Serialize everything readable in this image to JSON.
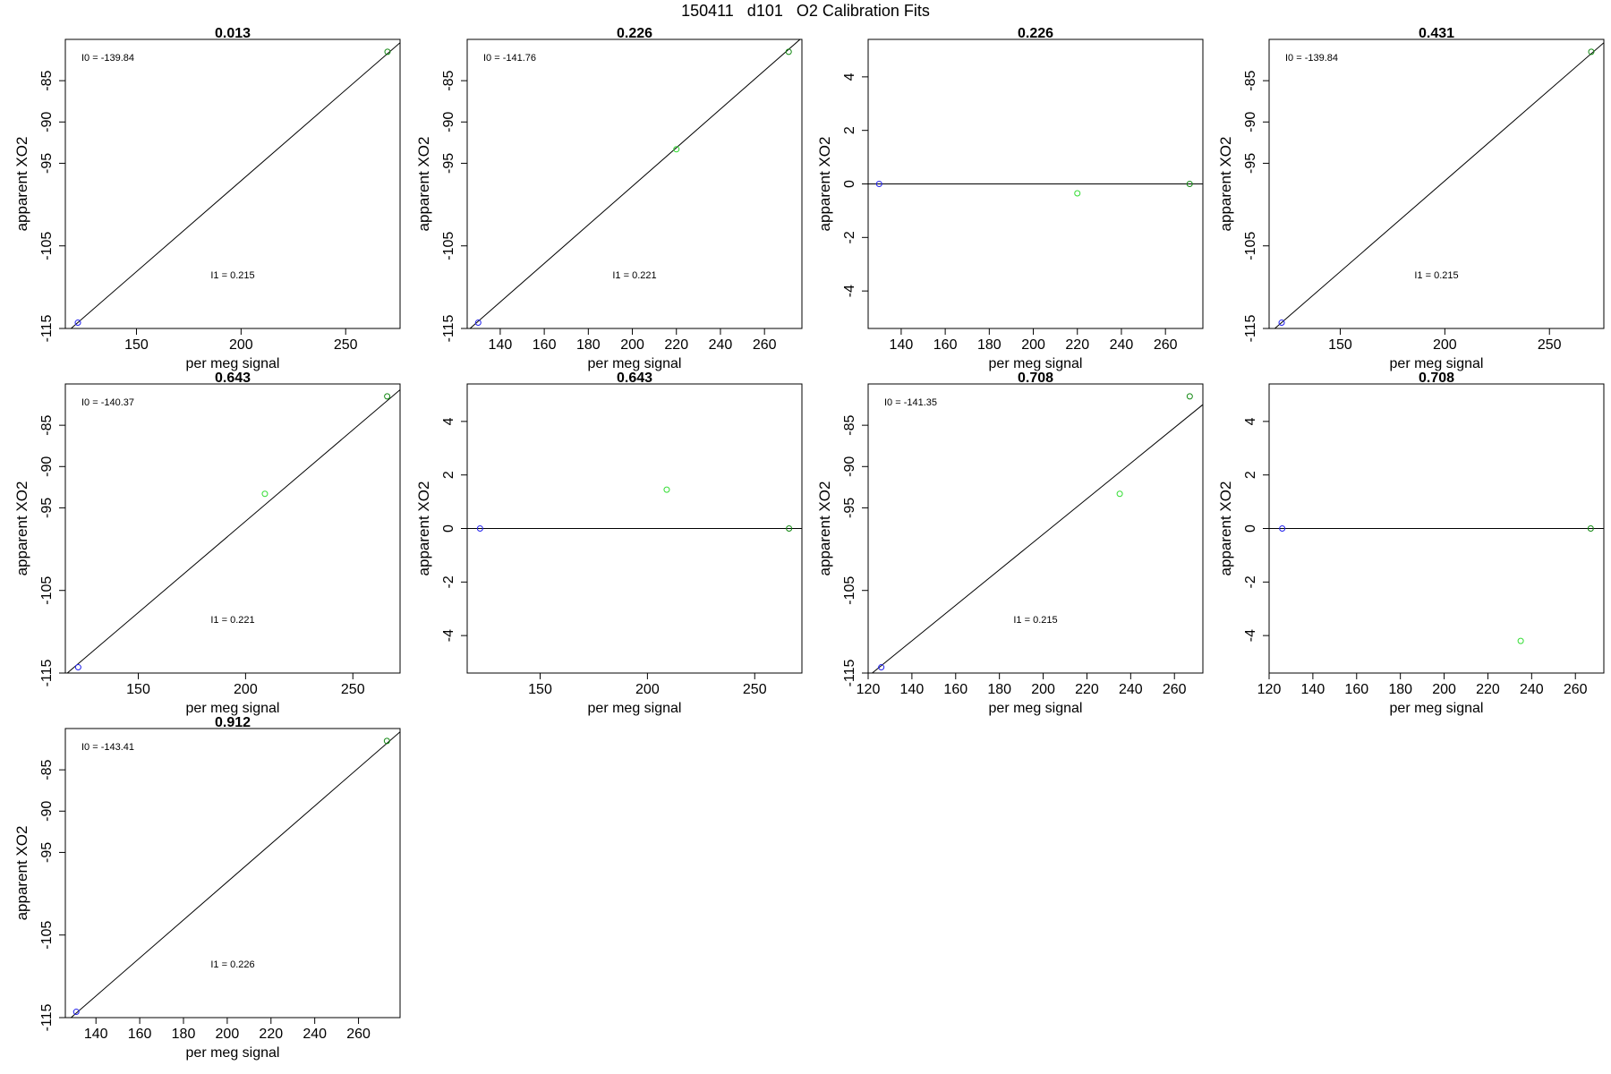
{
  "title": "150411   d101   O2 Calibration Fits",
  "colors": {
    "blue_point": "#2222ee",
    "green_point": "#33dd33",
    "dark_green_point": "#118811",
    "fit_line": "#000000"
  },
  "chart_data": [
    {
      "type": "scatter",
      "kind": "fit",
      "title": "0.013",
      "xlabel": "per meg signal",
      "ylabel": "apparent XO2",
      "xlim": [
        116,
        276
      ],
      "xticks": [
        150,
        200,
        250
      ],
      "ylim": [
        -115,
        -80
      ],
      "yticks": [
        -85,
        -90,
        -95,
        -105,
        -115
      ],
      "fit_line": [
        [
          116,
          -115.6
        ],
        [
          276,
          -80.4
        ]
      ],
      "annot_top": "I0 =  -139.84",
      "annot_mid": "I1 =  0.215",
      "points": [
        {
          "x": 122,
          "y": -114.3,
          "color": "blue"
        },
        {
          "x": 270,
          "y": -81.5,
          "color": "dark_green"
        }
      ]
    },
    {
      "type": "scatter",
      "kind": "fit",
      "title": "0.226",
      "xlabel": "per meg signal",
      "ylabel": "apparent XO2",
      "xlim": [
        125,
        277
      ],
      "xticks": [
        140,
        160,
        180,
        200,
        220,
        240,
        260
      ],
      "ylim": [
        -115,
        -80
      ],
      "yticks": [
        -85,
        -90,
        -95,
        -105,
        -115
      ],
      "fit_line": [
        [
          125,
          -115.3
        ],
        [
          277,
          -79.8
        ]
      ],
      "annot_top": "I0 =  -141.76",
      "annot_mid": "I1 =  0.221",
      "points": [
        {
          "x": 130,
          "y": -114.3,
          "color": "blue"
        },
        {
          "x": 220,
          "y": -93.3,
          "color": "green"
        },
        {
          "x": 271,
          "y": -81.5,
          "color": "dark_green"
        }
      ]
    },
    {
      "type": "scatter",
      "kind": "residual",
      "title": "0.226",
      "xlabel": "per meg signal",
      "ylabel": "apparent XO2",
      "xlim": [
        125,
        277
      ],
      "xticks": [
        140,
        160,
        180,
        200,
        220,
        240,
        260
      ],
      "ylim": [
        -5.4,
        5.4
      ],
      "yticks": [
        -4,
        -2,
        0,
        2,
        4
      ],
      "fit_line": [
        [
          125,
          0
        ],
        [
          277,
          0
        ]
      ],
      "points": [
        {
          "x": 130,
          "y": 0,
          "color": "blue"
        },
        {
          "x": 220,
          "y": -0.35,
          "color": "green"
        },
        {
          "x": 271,
          "y": 0,
          "color": "dark_green"
        }
      ]
    },
    {
      "type": "scatter",
      "kind": "fit",
      "title": "0.431",
      "xlabel": "per meg signal",
      "ylabel": "apparent XO2",
      "xlim": [
        116,
        276
      ],
      "xticks": [
        150,
        200,
        250
      ],
      "ylim": [
        -115,
        -80
      ],
      "yticks": [
        -85,
        -90,
        -95,
        -105,
        -115
      ],
      "fit_line": [
        [
          116,
          -115.6
        ],
        [
          276,
          -80.4
        ]
      ],
      "annot_top": "I0 =  -139.84",
      "annot_mid": "I1 =  0.215",
      "points": [
        {
          "x": 122,
          "y": -114.3,
          "color": "blue"
        },
        {
          "x": 270,
          "y": -81.5,
          "color": "dark_green"
        }
      ]
    },
    {
      "type": "scatter",
      "kind": "fit",
      "title": "0.643",
      "xlabel": "per meg signal",
      "ylabel": "apparent XO2",
      "xlim": [
        116,
        272
      ],
      "xticks": [
        150,
        200,
        250
      ],
      "ylim": [
        -115,
        -80
      ],
      "yticks": [
        -85,
        -90,
        -95,
        -105,
        -115
      ],
      "fit_line": [
        [
          116,
          -115.2
        ],
        [
          272,
          -80.7
        ]
      ],
      "annot_top": "I0 =  -140.37",
      "annot_mid": "I1 =  0.221",
      "points": [
        {
          "x": 122,
          "y": -114.3,
          "color": "blue"
        },
        {
          "x": 209,
          "y": -93.3,
          "color": "green"
        },
        {
          "x": 266,
          "y": -81.5,
          "color": "dark_green"
        }
      ]
    },
    {
      "type": "scatter",
      "kind": "residual",
      "title": "0.643",
      "xlabel": "per meg signal",
      "ylabel": "apparent XO2",
      "xlim": [
        116,
        272
      ],
      "xticks": [
        150,
        200,
        250
      ],
      "ylim": [
        -5.4,
        5.4
      ],
      "yticks": [
        -4,
        -2,
        0,
        2,
        4
      ],
      "fit_line": [
        [
          116,
          0
        ],
        [
          272,
          0
        ]
      ],
      "points": [
        {
          "x": 122,
          "y": 0,
          "color": "blue"
        },
        {
          "x": 209,
          "y": 1.45,
          "color": "green"
        },
        {
          "x": 266,
          "y": 0,
          "color": "dark_green"
        }
      ]
    },
    {
      "type": "scatter",
      "kind": "fit",
      "title": "0.708",
      "xlabel": "per meg signal",
      "ylabel": "apparent XO2",
      "xlim": [
        120,
        273
      ],
      "xticks": [
        120,
        140,
        160,
        180,
        200,
        220,
        240,
        260
      ],
      "ylim": [
        -115,
        -80
      ],
      "yticks": [
        -85,
        -90,
        -95,
        -105,
        -115
      ],
      "fit_line": [
        [
          120,
          -115.4
        ],
        [
          273,
          -82.5
        ]
      ],
      "annot_top": "I0 =  -141.35",
      "annot_mid": "I1 =  0.215",
      "points": [
        {
          "x": 126,
          "y": -114.3,
          "color": "blue"
        },
        {
          "x": 235,
          "y": -93.3,
          "color": "green"
        },
        {
          "x": 267,
          "y": -81.5,
          "color": "dark_green"
        }
      ]
    },
    {
      "type": "scatter",
      "kind": "residual",
      "title": "0.708",
      "xlabel": "per meg signal",
      "ylabel": "apparent XO2",
      "xlim": [
        120,
        273
      ],
      "xticks": [
        120,
        140,
        160,
        180,
        200,
        220,
        240,
        260
      ],
      "ylim": [
        -5.4,
        5.4
      ],
      "yticks": [
        -4,
        -2,
        0,
        2,
        4
      ],
      "fit_line": [
        [
          120,
          0
        ],
        [
          273,
          0
        ]
      ],
      "points": [
        {
          "x": 126,
          "y": 0,
          "color": "blue"
        },
        {
          "x": 235,
          "y": -4.2,
          "color": "green"
        },
        {
          "x": 267,
          "y": 0,
          "color": "dark_green"
        }
      ]
    },
    {
      "type": "scatter",
      "kind": "fit",
      "title": "0.912",
      "xlabel": "per meg signal",
      "ylabel": "apparent XO2",
      "xlim": [
        126,
        279
      ],
      "xticks": [
        140,
        160,
        180,
        200,
        220,
        240,
        260
      ],
      "ylim": [
        -115,
        -80
      ],
      "yticks": [
        -85,
        -90,
        -95,
        -105,
        -115
      ],
      "fit_line": [
        [
          126,
          -115.6
        ],
        [
          279,
          -80.4
        ]
      ],
      "annot_top": "I0 =  -143.41",
      "annot_mid": "I1 =  0.226",
      "points": [
        {
          "x": 131,
          "y": -114.3,
          "color": "blue"
        },
        {
          "x": 273,
          "y": -81.5,
          "color": "dark_green"
        }
      ]
    }
  ]
}
